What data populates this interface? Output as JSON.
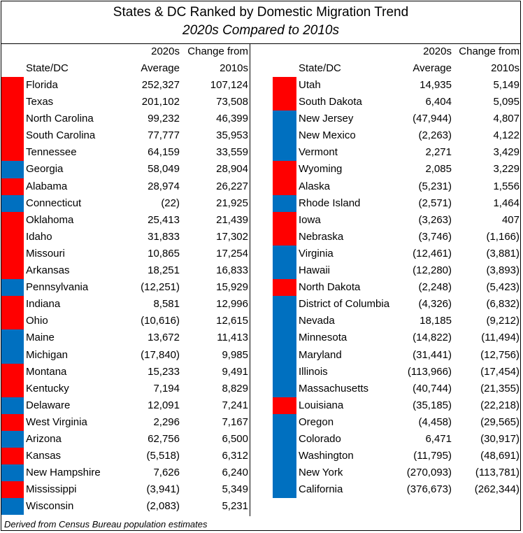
{
  "chart_data": {
    "type": "table",
    "title": "States & DC Ranked by Domestic Migration Trend",
    "subtitle": "2020s Compared to 2010s",
    "columns": {
      "state": "State/DC",
      "avg_line1": "2020s",
      "avg_line2": "Average",
      "chg_line1": "Change from",
      "chg_line2": "2010s"
    },
    "colors": {
      "red": "#ff0000",
      "blue": "#0070c0"
    },
    "left_rows": [
      {
        "state": "Florida",
        "avg": "252,327",
        "chg": "107,124",
        "color": "red"
      },
      {
        "state": "Texas",
        "avg": "201,102",
        "chg": "73,508",
        "color": "red"
      },
      {
        "state": "North Carolina",
        "avg": "99,232",
        "chg": "46,399",
        "color": "red"
      },
      {
        "state": "South Carolina",
        "avg": "77,777",
        "chg": "35,953",
        "color": "red"
      },
      {
        "state": "Tennessee",
        "avg": "64,159",
        "chg": "33,559",
        "color": "red"
      },
      {
        "state": "Georgia",
        "avg": "58,049",
        "chg": "28,904",
        "color": "blue"
      },
      {
        "state": "Alabama",
        "avg": "28,974",
        "chg": "26,227",
        "color": "red"
      },
      {
        "state": "Connecticut",
        "avg": "(22)",
        "chg": "21,925",
        "color": "blue"
      },
      {
        "state": "Oklahoma",
        "avg": "25,413",
        "chg": "21,439",
        "color": "red"
      },
      {
        "state": "Idaho",
        "avg": "31,833",
        "chg": "17,302",
        "color": "red"
      },
      {
        "state": "Missouri",
        "avg": "10,865",
        "chg": "17,254",
        "color": "red"
      },
      {
        "state": "Arkansas",
        "avg": "18,251",
        "chg": "16,833",
        "color": "red"
      },
      {
        "state": "Pennsylvania",
        "avg": "(12,251)",
        "chg": "15,929",
        "color": "blue"
      },
      {
        "state": "Indiana",
        "avg": "8,581",
        "chg": "12,996",
        "color": "red"
      },
      {
        "state": "Ohio",
        "avg": "(10,616)",
        "chg": "12,615",
        "color": "red"
      },
      {
        "state": "Maine",
        "avg": "13,672",
        "chg": "11,413",
        "color": "blue"
      },
      {
        "state": "Michigan",
        "avg": "(17,840)",
        "chg": "9,985",
        "color": "blue"
      },
      {
        "state": "Montana",
        "avg": "15,233",
        "chg": "9,491",
        "color": "red"
      },
      {
        "state": "Kentucky",
        "avg": "7,194",
        "chg": "8,829",
        "color": "red"
      },
      {
        "state": "Delaware",
        "avg": "12,091",
        "chg": "7,241",
        "color": "blue"
      },
      {
        "state": "West Virginia",
        "avg": "2,296",
        "chg": "7,167",
        "color": "red"
      },
      {
        "state": "Arizona",
        "avg": "62,756",
        "chg": "6,500",
        "color": "blue"
      },
      {
        "state": "Kansas",
        "avg": "(5,518)",
        "chg": "6,312",
        "color": "red"
      },
      {
        "state": "New Hampshire",
        "avg": "7,626",
        "chg": "6,240",
        "color": "blue"
      },
      {
        "state": "Mississippi",
        "avg": "(3,941)",
        "chg": "5,349",
        "color": "red"
      },
      {
        "state": "Wisconsin",
        "avg": "(2,083)",
        "chg": "5,231",
        "color": "blue"
      }
    ],
    "right_rows": [
      {
        "state": "Utah",
        "avg": "14,935",
        "chg": "5,149",
        "color": "red"
      },
      {
        "state": "South Dakota",
        "avg": "6,404",
        "chg": "5,095",
        "color": "red"
      },
      {
        "state": "New Jersey",
        "avg": "(47,944)",
        "chg": "4,807",
        "color": "blue"
      },
      {
        "state": "New Mexico",
        "avg": "(2,263)",
        "chg": "4,122",
        "color": "blue"
      },
      {
        "state": "Vermont",
        "avg": "2,271",
        "chg": "3,429",
        "color": "blue"
      },
      {
        "state": "Wyoming",
        "avg": "2,085",
        "chg": "3,229",
        "color": "red"
      },
      {
        "state": "Alaska",
        "avg": "(5,231)",
        "chg": "1,556",
        "color": "red"
      },
      {
        "state": "Rhode Island",
        "avg": "(2,571)",
        "chg": "1,464",
        "color": "blue"
      },
      {
        "state": "Iowa",
        "avg": "(3,263)",
        "chg": "407",
        "color": "red"
      },
      {
        "state": "Nebraska",
        "avg": "(3,746)",
        "chg": "(1,166)",
        "color": "red"
      },
      {
        "state": "Virginia",
        "avg": "(12,461)",
        "chg": "(3,881)",
        "color": "blue"
      },
      {
        "state": "Hawaii",
        "avg": "(12,280)",
        "chg": "(3,893)",
        "color": "blue"
      },
      {
        "state": "North Dakota",
        "avg": "(2,248)",
        "chg": "(5,423)",
        "color": "red"
      },
      {
        "state": "District of Columbia",
        "avg": "(4,326)",
        "chg": "(6,832)",
        "color": "blue"
      },
      {
        "state": "Nevada",
        "avg": "18,185",
        "chg": "(9,212)",
        "color": "blue"
      },
      {
        "state": "Minnesota",
        "avg": "(14,822)",
        "chg": "(11,494)",
        "color": "blue"
      },
      {
        "state": "Maryland",
        "avg": "(31,441)",
        "chg": "(12,756)",
        "color": "blue"
      },
      {
        "state": "Illinois",
        "avg": "(113,966)",
        "chg": "(17,454)",
        "color": "blue"
      },
      {
        "state": "Massachusetts",
        "avg": "(40,744)",
        "chg": "(21,355)",
        "color": "blue"
      },
      {
        "state": "Louisiana",
        "avg": "(35,185)",
        "chg": "(22,218)",
        "color": "red"
      },
      {
        "state": "Oregon",
        "avg": "(4,458)",
        "chg": "(29,565)",
        "color": "blue"
      },
      {
        "state": "Colorado",
        "avg": "6,471",
        "chg": "(30,917)",
        "color": "blue"
      },
      {
        "state": "Washington",
        "avg": "(11,795)",
        "chg": "(48,691)",
        "color": "blue"
      },
      {
        "state": "New York",
        "avg": "(270,093)",
        "chg": "(113,781)",
        "color": "blue"
      },
      {
        "state": "California",
        "avg": "(376,673)",
        "chg": "(262,344)",
        "color": "blue"
      }
    ],
    "footnote": "Derived from Census Bureau population estimates"
  }
}
